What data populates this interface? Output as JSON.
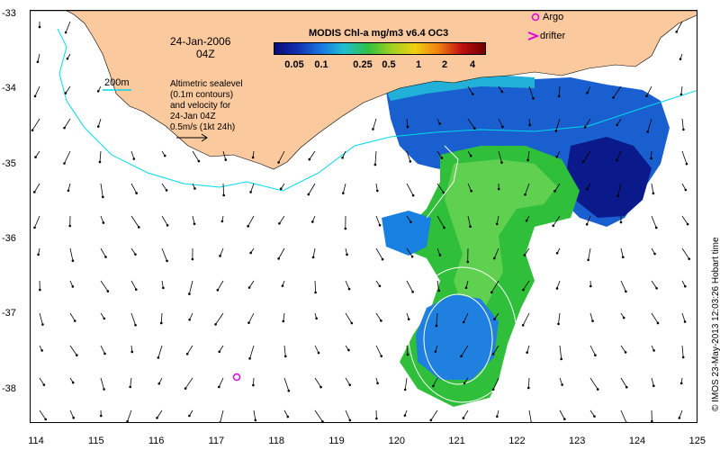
{
  "title": {
    "date": "24-Jan-2006",
    "time": "04Z",
    "product": "MODIS Chl-a mg/m3 v6.4 OC3"
  },
  "legend": {
    "argo": "Argo",
    "drifter": "drifter",
    "isobath": "200m",
    "sealevel_lines": [
      "Altimetric sealevel",
      "(0.1m contours)",
      "and velocity for",
      "24-Jan 04Z",
      "0.5m/s (1kt 24h)"
    ]
  },
  "colorbar": {
    "tick_labels": [
      "0.05",
      "0.1",
      "0.25",
      "0.5",
      "1",
      "2",
      "4"
    ],
    "colors": [
      "#0a0a7a",
      "#1030b0",
      "#1878e0",
      "#20c0d0",
      "#30c040",
      "#a0d020",
      "#f0d010",
      "#f08010",
      "#c01010",
      "#700000"
    ]
  },
  "axes": {
    "x_ticks": [
      "114",
      "115",
      "116",
      "117",
      "118",
      "119",
      "120",
      "121",
      "122",
      "123",
      "124",
      "125"
    ],
    "y_ticks": [
      "-33",
      "-34",
      "-35",
      "-36",
      "-37",
      "-38"
    ]
  },
  "map_colors": {
    "land": "#fac99e",
    "isobath": "#00d8e8",
    "contour": "#ffffff",
    "argo": "#e000e0"
  },
  "credit": "© IMOS 23-May-2013 12:03:26 Hobart time"
}
